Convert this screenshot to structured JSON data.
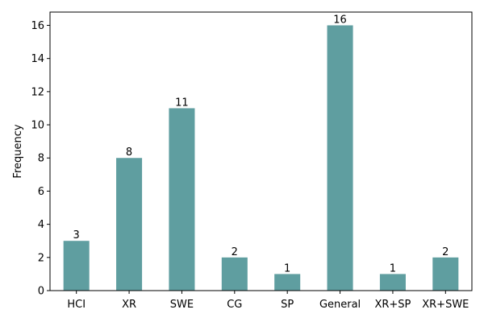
{
  "chart_data": {
    "type": "bar",
    "categories": [
      "HCI",
      "XR",
      "SWE",
      "CG",
      "SP",
      "General",
      "XR+SP",
      "XR+SWE"
    ],
    "values": [
      3,
      8,
      11,
      2,
      1,
      16,
      1,
      2
    ],
    "title": "",
    "xlabel": "",
    "ylabel": "Frequency",
    "ylim": [
      0,
      16.8
    ],
    "yticks": [
      0,
      2,
      4,
      6,
      8,
      10,
      12,
      14,
      16
    ],
    "bar_color": "#5f9ea0",
    "grid": false,
    "data_labels": true
  }
}
